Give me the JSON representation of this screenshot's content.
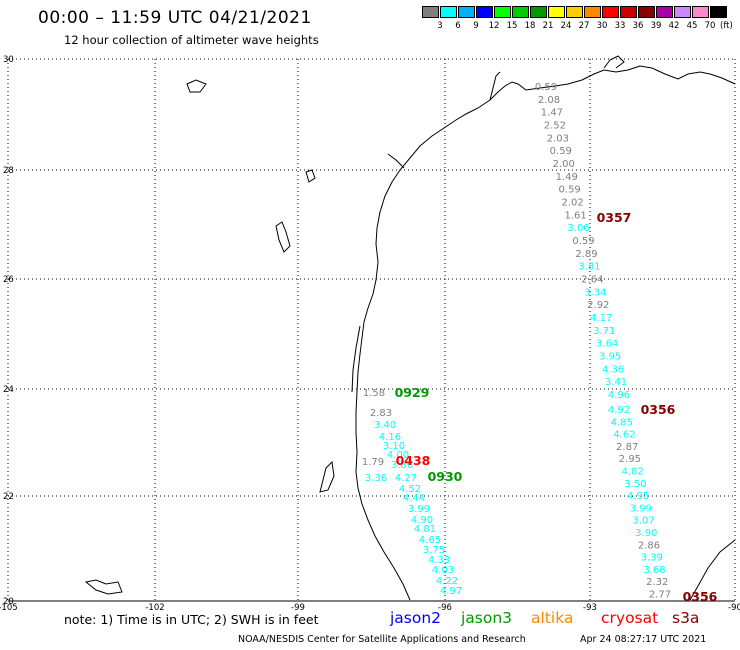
{
  "header": {
    "title": "00:00 – 11:59 UTC 04/21/2021",
    "subtitle": "12 hour collection of altimeter wave heights"
  },
  "colorbar": {
    "colors": [
      "#7f7f7f",
      "#00ffff",
      "#00b0ff",
      "#0000ff",
      "#00ff00",
      "#00cc00",
      "#009900",
      "#ffff00",
      "#ffcc00",
      "#ff8800",
      "#ff0000",
      "#cc0000",
      "#880000",
      "#aa00aa",
      "#cc88ff",
      "#ff88cc",
      "#000000"
    ],
    "labels": [
      "3",
      "6",
      "9",
      "12",
      "15",
      "18",
      "21",
      "24",
      "27",
      "30",
      "33",
      "36",
      "39",
      "42",
      "45",
      "70"
    ],
    "unit": "(ft)"
  },
  "axes": {
    "lat_labels": [
      "30",
      "28",
      "26",
      "24",
      "22",
      "20"
    ],
    "lon_labels": [
      "-105",
      "-102",
      "-99",
      "-96",
      "-93",
      "-90"
    ]
  },
  "pass_labels": [
    {
      "text": "0357",
      "color": "#880000"
    },
    {
      "text": "0929",
      "color": "#009900"
    },
    {
      "text": "0356",
      "color": "#880000"
    },
    {
      "text": "0438",
      "color": "#ff0000"
    },
    {
      "text": "0930",
      "color": "#009900"
    },
    {
      "text": "0356",
      "color": "#880000"
    }
  ],
  "tracks": [
    {
      "pass": "0357",
      "values": [
        "0.59",
        "2.08",
        "1.47",
        "2.52",
        "2.03",
        "0.59",
        "2.00",
        "1.49",
        "0.59",
        "2.02",
        "1.61",
        "3.06",
        "0.59",
        "2.89",
        "3.81",
        "2.64",
        "3.34",
        "2.92",
        "4.17",
        "3.71",
        "3.64",
        "3.95",
        "4.36",
        "3.41",
        "4.96"
      ],
      "colors": [
        "#7f7f7f",
        "#7f7f7f",
        "#7f7f7f",
        "#7f7f7f",
        "#7f7f7f",
        "#7f7f7f",
        "#7f7f7f",
        "#7f7f7f",
        "#7f7f7f",
        "#7f7f7f",
        "#7f7f7f",
        "#00ffff",
        "#7f7f7f",
        "#7f7f7f",
        "#00ffff",
        "#7f7f7f",
        "#00ffff",
        "#7f7f7f",
        "#00ffff",
        "#00ffff",
        "#00ffff",
        "#00ffff",
        "#00ffff",
        "#00ffff",
        "#00ffff"
      ]
    },
    {
      "pass": "0356",
      "values": [
        "4.92",
        "4.85",
        "4.62",
        "2.87",
        "2.95",
        "4.82",
        "3.50",
        "4.95",
        "3.99",
        "3.07",
        "3.90",
        "2.86",
        "3.39",
        "3.68",
        "2.32",
        "2.77"
      ],
      "colors": [
        "#00ffff",
        "#00ffff",
        "#00ffff",
        "#7f7f7f",
        "#7f7f7f",
        "#00ffff",
        "#00ffff",
        "#00ffff",
        "#00ffff",
        "#00ffff",
        "#00ffff",
        "#7f7f7f",
        "#00ffff",
        "#00ffff",
        "#7f7f7f",
        "#7f7f7f"
      ]
    },
    {
      "pass": "0929/0930",
      "values": [
        "1.58",
        "2.83",
        "3.40",
        "4.16",
        "3.10",
        "4.00",
        "1.79",
        "3.86",
        "3.36",
        "4.27",
        "4.52",
        "4.44",
        "3.99",
        "4.90",
        "4.81",
        "4.65",
        "3.75",
        "4.33",
        "4.03",
        "4.22",
        "4.97"
      ],
      "colors": [
        "#7f7f7f",
        "#7f7f7f",
        "#00ffff",
        "#00ffff",
        "#00ffff",
        "#00ffff",
        "#7f7f7f",
        "#00ffff",
        "#00ffff",
        "#00ffff",
        "#00ffff",
        "#00ffff",
        "#00ffff",
        "#00ffff",
        "#00ffff",
        "#00ffff",
        "#00ffff",
        "#00ffff",
        "#00ffff",
        "#00ffff",
        "#00ffff"
      ]
    }
  ],
  "footer": {
    "note": "note: 1) Time is in UTC; 2) SWH is in feet",
    "satellites": [
      {
        "name": "jason2",
        "color": "#0000ff"
      },
      {
        "name": "jason3",
        "color": "#009900"
      },
      {
        "name": "altika",
        "color": "#ff8800"
      },
      {
        "name": "cryosat",
        "color": "#ff0000"
      },
      {
        "name": "s3a",
        "color": "#880000"
      }
    ],
    "credit": "NOAA/NESDIS Center for Satellite Applications and Research",
    "timestamp": "Apr 24 08:27:17 UTC 2021"
  }
}
